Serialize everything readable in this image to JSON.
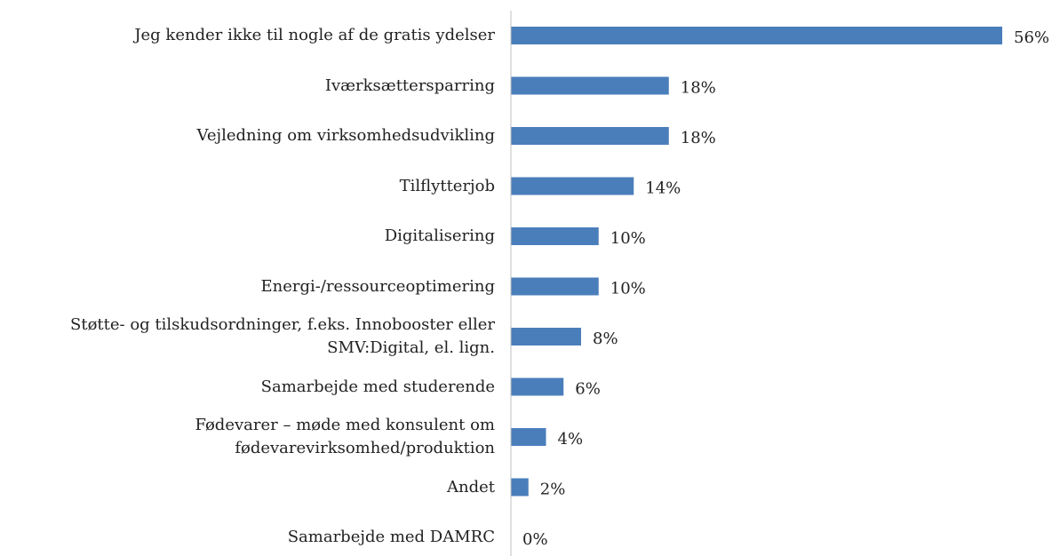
{
  "chart_data": {
    "type": "barh",
    "categories": [
      "Jeg kender ikke til nogle af de gratis ydelser",
      "Iværksættersparring",
      "Vejledning om virksomhedsudvikling",
      "Tilflytterjob",
      "Digitalisering",
      "Energi-/ressourceoptimering",
      "Støtte- og tilskudsordninger, f.eks. Innobooster eller\nSMV:Digital, el. lign.",
      "Samarbejde med studerende",
      "Fødevarer – møde med konsulent om\nfødevarevirksomhed/produktion",
      "Andet",
      "Samarbejde med DAMRC"
    ],
    "values": [
      56,
      18,
      18,
      14,
      10,
      10,
      8,
      6,
      4,
      2,
      0
    ],
    "value_labels": [
      "56%",
      "18%",
      "18%",
      "14%",
      "10%",
      "10%",
      "8%",
      "6%",
      "4%",
      "2%",
      "0%"
    ],
    "color": "#4a7ebb",
    "xlim": [
      0,
      60
    ]
  }
}
